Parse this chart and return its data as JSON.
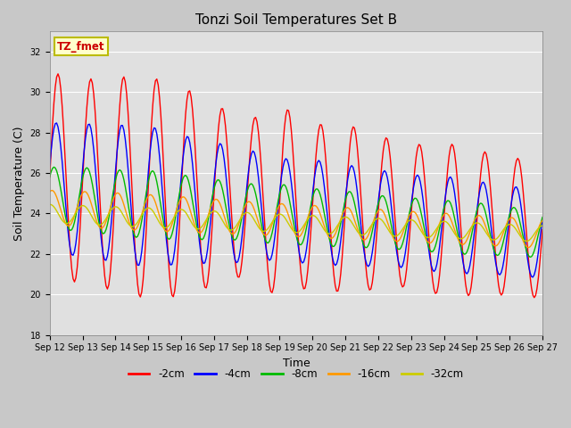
{
  "title": "Tonzi Soil Temperatures Set B",
  "xlabel": "Time",
  "ylabel": "Soil Temperature (C)",
  "ylim": [
    18,
    33
  ],
  "yticks": [
    18,
    20,
    22,
    24,
    26,
    28,
    30,
    32
  ],
  "xtick_labels": [
    "Sep 12",
    "Sep 13",
    "Sep 14",
    "Sep 15",
    "Sep 16",
    "Sep 17",
    "Sep 18",
    "Sep 19",
    "Sep 20",
    "Sep 21",
    "Sep 22",
    "Sep 23",
    "Sep 24",
    "Sep 25",
    "Sep 26",
    "Sep 27"
  ],
  "legend_entries": [
    "-2cm",
    "-4cm",
    "-8cm",
    "-16cm",
    "-32cm"
  ],
  "legend_colors": [
    "#ff0000",
    "#0000ff",
    "#00bb00",
    "#ff9900",
    "#cccc00"
  ],
  "annotation_text": "TZ_fmet",
  "annotation_bg": "#ffffcc",
  "annotation_border": "#bbbb00",
  "fig_bg": "#c8c8c8",
  "plot_bg": "#e0e0e0",
  "grid_color": "#ffffff",
  "phases": [
    0.0,
    0.35,
    0.75,
    1.15,
    1.5
  ],
  "means_start": [
    25.8,
    25.3,
    24.8,
    24.3,
    24.0
  ],
  "means_end": [
    23.2,
    23.0,
    23.0,
    23.0,
    23.0
  ],
  "amps_2cm": [
    5.2,
    5.0,
    5.3,
    5.5,
    5.2,
    4.5,
    3.8,
    4.8,
    4.0,
    4.2,
    3.8,
    3.5,
    3.8,
    3.6,
    3.4
  ],
  "amps_4cm": [
    3.2,
    3.3,
    3.4,
    3.5,
    3.2,
    3.0,
    2.8,
    2.5,
    2.6,
    2.5,
    2.4,
    2.3,
    2.4,
    2.3,
    2.2
  ],
  "amps_8cm": [
    1.5,
    1.6,
    1.6,
    1.7,
    1.6,
    1.5,
    1.4,
    1.5,
    1.4,
    1.4,
    1.3,
    1.3,
    1.3,
    1.3,
    1.2
  ],
  "amps_16cm": [
    0.85,
    0.88,
    0.9,
    0.9,
    0.88,
    0.85,
    0.82,
    0.8,
    0.8,
    0.78,
    0.78,
    0.76,
    0.76,
    0.74,
    0.72
  ],
  "amps_32cm": [
    0.45,
    0.46,
    0.47,
    0.48,
    0.47,
    0.46,
    0.45,
    0.44,
    0.44,
    0.43,
    0.43,
    0.42,
    0.42,
    0.41,
    0.4
  ]
}
